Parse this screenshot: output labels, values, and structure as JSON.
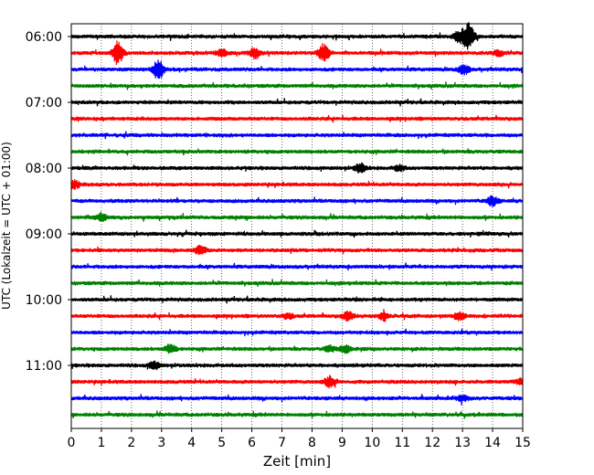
{
  "chart_data": {
    "type": "line",
    "title": "",
    "xlabel": "Zeit  [min]",
    "ylabel": "UTC (Lokalzeit = UTC + 01:00)",
    "xlim": [
      0,
      15
    ],
    "x_ticks": [
      "0",
      "1",
      "2",
      "3",
      "4",
      "5",
      "6",
      "7",
      "8",
      "9",
      "10",
      "11",
      "12",
      "13",
      "14",
      "15"
    ],
    "y_tick_labels": [
      "06:00",
      "07:00",
      "08:00",
      "09:00",
      "10:00",
      "11:00"
    ],
    "grid": "vertical dotted",
    "trace_colors": [
      "#000000",
      "#ff0000",
      "#0000ff",
      "#008000"
    ],
    "trace_count": 24,
    "trace_start_times": [
      "06:00",
      "06:15",
      "06:30",
      "06:45",
      "07:00",
      "07:15",
      "07:30",
      "07:45",
      "08:00",
      "08:15",
      "08:30",
      "08:45",
      "09:00",
      "09:15",
      "09:30",
      "09:45",
      "10:00",
      "10:15",
      "10:30",
      "10:45",
      "11:00",
      "11:15",
      "11:30",
      "11:45"
    ],
    "bursts": [
      {
        "trace": 0,
        "t": 13.2,
        "amp": 14
      },
      {
        "trace": 0,
        "t": 12.9,
        "amp": 6
      },
      {
        "trace": 1,
        "t": 1.55,
        "amp": 12
      },
      {
        "trace": 1,
        "t": 6.1,
        "amp": 6
      },
      {
        "trace": 1,
        "t": 8.4,
        "amp": 10
      },
      {
        "trace": 1,
        "t": 5.0,
        "amp": 4
      },
      {
        "trace": 1,
        "t": 14.2,
        "amp": 3
      },
      {
        "trace": 2,
        "t": 2.9,
        "amp": 11
      },
      {
        "trace": 2,
        "t": 13.05,
        "amp": 5
      },
      {
        "trace": 8,
        "t": 9.6,
        "amp": 5
      },
      {
        "trace": 8,
        "t": 10.9,
        "amp": 3
      },
      {
        "trace": 9,
        "t": 0.1,
        "amp": 4
      },
      {
        "trace": 10,
        "t": 14.0,
        "amp": 5
      },
      {
        "trace": 11,
        "t": 1.0,
        "amp": 4
      },
      {
        "trace": 13,
        "t": 4.3,
        "amp": 5
      },
      {
        "trace": 17,
        "t": 9.2,
        "amp": 5
      },
      {
        "trace": 17,
        "t": 10.4,
        "amp": 4
      },
      {
        "trace": 17,
        "t": 12.9,
        "amp": 4
      },
      {
        "trace": 17,
        "t": 7.2,
        "amp": 3
      },
      {
        "trace": 19,
        "t": 3.3,
        "amp": 5
      },
      {
        "trace": 19,
        "t": 9.1,
        "amp": 4
      },
      {
        "trace": 19,
        "t": 8.6,
        "amp": 3
      },
      {
        "trace": 20,
        "t": 2.75,
        "amp": 4
      },
      {
        "trace": 21,
        "t": 8.6,
        "amp": 6
      },
      {
        "trace": 21,
        "t": 14.95,
        "amp": 3
      },
      {
        "trace": 22,
        "t": 13.0,
        "amp": 3
      }
    ]
  }
}
